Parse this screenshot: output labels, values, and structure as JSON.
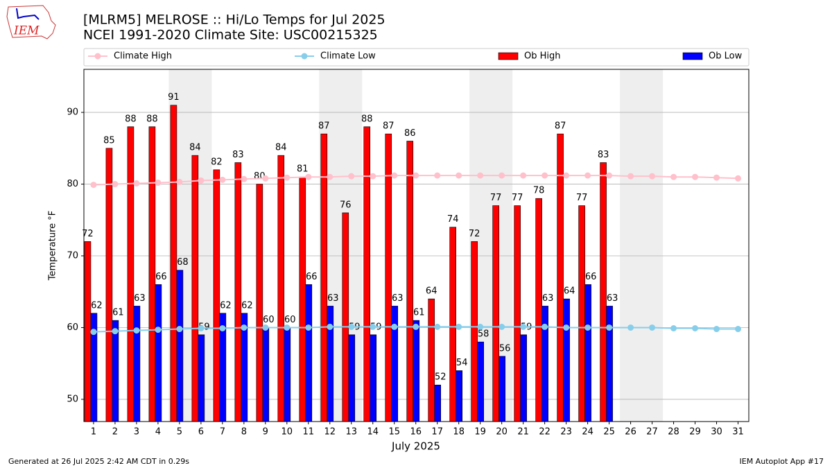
{
  "chart_data": {
    "type": "bar",
    "title": "[MLRM5] MELROSE :: Hi/Lo Temps for Jul 2025",
    "subtitle": "NCEI 1991-2020 Climate Site: USC00215325",
    "x_label": "July 2025",
    "y_label": "Temperature °F",
    "footer_left": "Generated at 26 Jul 2025 2:42 AM CDT in 0.29s",
    "footer_right": "IEM Autoplot App #17",
    "logo_text": "IEM",
    "x": [
      1,
      2,
      3,
      4,
      5,
      6,
      7,
      8,
      9,
      10,
      11,
      12,
      13,
      14,
      15,
      16,
      17,
      18,
      19,
      20,
      21,
      22,
      23,
      24,
      25,
      26,
      27,
      28,
      29,
      30,
      31
    ],
    "xlim": [
      0.55,
      31.5
    ],
    "xticks": [
      1,
      2,
      3,
      4,
      5,
      6,
      7,
      8,
      9,
      10,
      11,
      12,
      13,
      14,
      15,
      16,
      17,
      18,
      19,
      20,
      21,
      22,
      23,
      24,
      25,
      26,
      27,
      28,
      29,
      30,
      31
    ],
    "ylim": [
      46.9,
      96
    ],
    "yticks": [
      50,
      60,
      70,
      80,
      90
    ],
    "grid": true,
    "shaded_ranges": [
      [
        4.5,
        6.5
      ],
      [
        11.5,
        13.5
      ],
      [
        18.5,
        20.5
      ],
      [
        25.5,
        27.5
      ]
    ],
    "shade_color": "#eeeeee",
    "series": [
      {
        "name": "Climate High",
        "type": "line",
        "color": "#ffc0cb",
        "values": [
          79.9,
          80.0,
          80.1,
          80.2,
          80.3,
          80.5,
          80.6,
          80.7,
          80.8,
          80.9,
          81.0,
          81.0,
          81.1,
          81.1,
          81.2,
          81.2,
          81.2,
          81.2,
          81.2,
          81.2,
          81.2,
          81.2,
          81.2,
          81.2,
          81.2,
          81.1,
          81.1,
          81.0,
          81.0,
          80.9,
          80.8
        ]
      },
      {
        "name": "Climate Low",
        "type": "line",
        "color": "#87ceeb",
        "values": [
          59.4,
          59.5,
          59.6,
          59.7,
          59.8,
          59.9,
          59.9,
          60.0,
          60.0,
          60.0,
          60.0,
          60.1,
          60.1,
          60.1,
          60.1,
          60.1,
          60.1,
          60.1,
          60.1,
          60.1,
          60.1,
          60.1,
          60.0,
          60.0,
          60.0,
          60.0,
          60.0,
          59.9,
          59.9,
          59.8,
          59.8
        ]
      },
      {
        "name": "Ob High",
        "type": "bar",
        "color": "#ff0000",
        "values": [
          72,
          85,
          88,
          88,
          91,
          84,
          82,
          83,
          80,
          84,
          81,
          87,
          76,
          88,
          87,
          86,
          64,
          74,
          72,
          77,
          77,
          78,
          87,
          77,
          83,
          null,
          null,
          null,
          null,
          null,
          null
        ]
      },
      {
        "name": "Ob Low",
        "type": "bar",
        "color": "#0000ff",
        "values": [
          62,
          61,
          63,
          66,
          68,
          59,
          62,
          62,
          60,
          60,
          66,
          63,
          59,
          59,
          63,
          61,
          52,
          54,
          58,
          56,
          59,
          63,
          64,
          66,
          63,
          null,
          null,
          null,
          null,
          null,
          null
        ]
      }
    ]
  }
}
